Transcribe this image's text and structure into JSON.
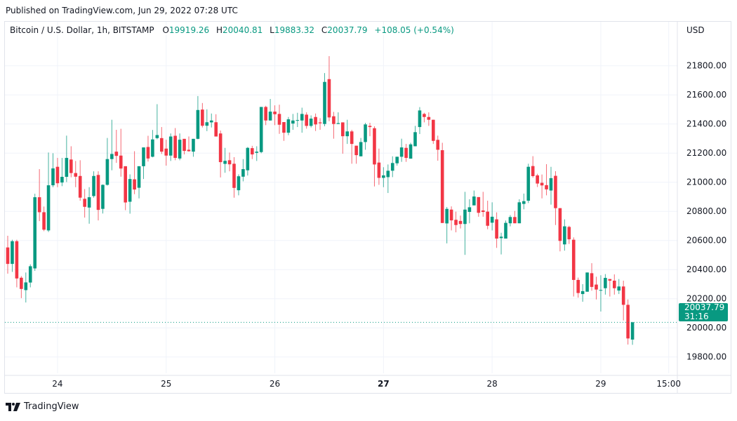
{
  "published": "Published on TradingView.com, Jun 29, 2022 07:28 UTC",
  "legend": {
    "symbol": "Bitcoin / U.S. Dollar, 1h, BITSTAMP",
    "o_label": "O",
    "o": "19919.26",
    "h_label": "H",
    "h": "20040.81",
    "l_label": "L",
    "l": "19883.32",
    "c_label": "C",
    "c": "20037.79",
    "change": "+108.05 (+0.54%)"
  },
  "currency": "USD",
  "last_price": {
    "value": "20037.79",
    "countdown": "31:16"
  },
  "logo": {
    "text": "TradingView",
    "icon": "tradingview-logo-icon"
  },
  "colors": {
    "up": "#089981",
    "down": "#F23645",
    "grid": "#f0f3fa"
  },
  "chart_data": {
    "type": "candlestick",
    "title": "Bitcoin / U.S. Dollar, 1h, BITSTAMP",
    "interval": "1h",
    "start": "2022-06-23 13:00",
    "ylim": [
      19700,
      22050
    ],
    "grid": true,
    "y_ticks": [
      "19800.00",
      "20000.00",
      "20200.00",
      "20400.00",
      "20600.00",
      "20800.00",
      "21000.00",
      "21200.00",
      "21400.00",
      "21600.00",
      "21800.00"
    ],
    "x_ticks": [
      {
        "label": "24",
        "t": "2022-06-24 00:00",
        "bold": false
      },
      {
        "label": "25",
        "t": "2022-06-25 00:00",
        "bold": false
      },
      {
        "label": "26",
        "t": "2022-06-26 00:00",
        "bold": false
      },
      {
        "label": "27",
        "t": "2022-06-27 00:00",
        "bold": true
      },
      {
        "label": "28",
        "t": "2022-06-28 00:00",
        "bold": false
      },
      {
        "label": "29",
        "t": "2022-06-29 00:00",
        "bold": false
      },
      {
        "label": "15:00",
        "t": "2022-06-29 15:00",
        "bold": false
      }
    ],
    "ohlc_fields": [
      "open",
      "high",
      "low",
      "close"
    ],
    "candles": [
      [
        20552,
        20632,
        20372,
        20439
      ],
      [
        20439,
        20605,
        20384,
        20595
      ],
      [
        20595,
        20605,
        20278,
        20339
      ],
      [
        20344,
        20355,
        20204,
        20267
      ],
      [
        20259,
        20380,
        20174,
        20312
      ],
      [
        20311,
        20436,
        20278,
        20423
      ],
      [
        20408,
        20921,
        20391,
        20897
      ],
      [
        20897,
        21090,
        20733,
        20794
      ],
      [
        20794,
        20833,
        20664,
        20674
      ],
      [
        20669,
        21204,
        20658,
        20979
      ],
      [
        20979,
        21199,
        20966,
        21095
      ],
      [
        21106,
        21167,
        20966,
        20993
      ],
      [
        20998,
        21167,
        20973,
        21037
      ],
      [
        21037,
        21320,
        21001,
        21167
      ],
      [
        21156,
        21247,
        21034,
        21063
      ],
      [
        21063,
        21146,
        20966,
        21038
      ],
      [
        21043,
        21151,
        20873,
        20894
      ],
      [
        20886,
        20953,
        20757,
        20831
      ],
      [
        20826,
        20966,
        20715,
        20897
      ],
      [
        20905,
        21075,
        20894,
        21043
      ],
      [
        21050,
        21075,
        20738,
        20810
      ],
      [
        20817,
        20985,
        20785,
        20982
      ],
      [
        20982,
        21304,
        20977,
        21159
      ],
      [
        21159,
        21429,
        21082,
        21194
      ],
      [
        21210,
        21360,
        21133,
        21181
      ],
      [
        21183,
        21367,
        21038,
        21094
      ],
      [
        21110,
        21110,
        20808,
        20861
      ],
      [
        20866,
        21054,
        20784,
        21022
      ],
      [
        21020,
        21213,
        20918,
        20950
      ],
      [
        20962,
        21110,
        20889,
        21110
      ],
      [
        21110,
        21239,
        21022,
        21239
      ],
      [
        21242,
        21319,
        21142,
        21163
      ],
      [
        21175,
        21359,
        21171,
        21294
      ],
      [
        21303,
        21536,
        21295,
        21324
      ],
      [
        21303,
        21379,
        21194,
        21210
      ],
      [
        21231,
        21292,
        21114,
        21183
      ],
      [
        21183,
        21335,
        21146,
        21314
      ],
      [
        21319,
        21372,
        21151,
        21167
      ],
      [
        21163,
        21335,
        21151,
        21292
      ],
      [
        21298,
        21298,
        21191,
        21215
      ],
      [
        21223,
        21314,
        21210,
        21213
      ],
      [
        21210,
        21298,
        21175,
        21298
      ],
      [
        21298,
        21592,
        21295,
        21496
      ],
      [
        21499,
        21544,
        21376,
        21388
      ],
      [
        21388,
        21501,
        21351,
        21412
      ],
      [
        21411,
        21472,
        21376,
        21424
      ],
      [
        21412,
        21467,
        21314,
        21314
      ],
      [
        21335,
        21355,
        21033,
        21138
      ],
      [
        21126,
        21236,
        21065,
        21147
      ],
      [
        21151,
        21204,
        21075,
        21123
      ],
      [
        21127,
        21172,
        20894,
        20961
      ],
      [
        20945,
        21054,
        20910,
        21041
      ],
      [
        21038,
        21159,
        21006,
        21090
      ],
      [
        21082,
        21242,
        21046,
        21236
      ],
      [
        21234,
        21250,
        21159,
        21191
      ],
      [
        21202,
        21247,
        21146,
        21210
      ],
      [
        21207,
        21517,
        21199,
        21517
      ],
      [
        21517,
        21525,
        21392,
        21424
      ],
      [
        21424,
        21572,
        21424,
        21485
      ],
      [
        21485,
        21528,
        21392,
        21467
      ],
      [
        21469,
        21532,
        21332,
        21395
      ],
      [
        21413,
        21413,
        21284,
        21340
      ],
      [
        21340,
        21448,
        21323,
        21432
      ],
      [
        21403,
        21469,
        21360,
        21424
      ],
      [
        21424,
        21477,
        21379,
        21427
      ],
      [
        21424,
        21512,
        21340,
        21469
      ],
      [
        21464,
        21480,
        21368,
        21387
      ],
      [
        21387,
        21459,
        21376,
        21437
      ],
      [
        21448,
        21472,
        21352,
        21397
      ],
      [
        21411,
        21440,
        21360,
        21405
      ],
      [
        21400,
        21750,
        21384,
        21689
      ],
      [
        21708,
        21866,
        21419,
        21445
      ],
      [
        21453,
        21483,
        21299,
        21400
      ],
      [
        21400,
        21480,
        21400,
        21406
      ],
      [
        21411,
        21411,
        21196,
        21316
      ],
      [
        21316,
        21429,
        21263,
        21349
      ],
      [
        21349,
        21360,
        21127,
        21263
      ],
      [
        21251,
        21251,
        21127,
        21186
      ],
      [
        21178,
        21304,
        21178,
        21276
      ],
      [
        21276,
        21408,
        21223,
        21397
      ],
      [
        21387,
        21408,
        21316,
        21379
      ],
      [
        21371,
        21384,
        20971,
        21122
      ],
      [
        21135,
        21231,
        20982,
        21030
      ],
      [
        21030,
        21103,
        20966,
        21047
      ],
      [
        21035,
        21122,
        20926,
        21079
      ],
      [
        21079,
        21178,
        21035,
        21132
      ],
      [
        21130,
        21175,
        21114,
        21175
      ],
      [
        21175,
        21299,
        21140,
        21239
      ],
      [
        21236,
        21263,
        21140,
        21167
      ],
      [
        21162,
        21271,
        21162,
        21260
      ],
      [
        21247,
        21387,
        21247,
        21344
      ],
      [
        21379,
        21516,
        21331,
        21493
      ],
      [
        21469,
        21477,
        21411,
        21448
      ],
      [
        21448,
        21480,
        21387,
        21429
      ],
      [
        21429,
        21429,
        21263,
        21284
      ],
      [
        21291,
        21320,
        21148,
        21223
      ],
      [
        21220,
        21271,
        20720,
        20720
      ],
      [
        20717,
        20830,
        20580,
        20817
      ],
      [
        20812,
        20834,
        20669,
        20738
      ],
      [
        20742,
        20798,
        20656,
        20706
      ],
      [
        20734,
        20771,
        20682,
        20713
      ],
      [
        20713,
        20934,
        20501,
        20812
      ],
      [
        20796,
        20883,
        20718,
        20828
      ],
      [
        20841,
        20943,
        20841,
        20902
      ],
      [
        20898,
        20898,
        20763,
        20790
      ],
      [
        20806,
        20934,
        20763,
        20796
      ],
      [
        20798,
        20873,
        20677,
        20701
      ],
      [
        20722,
        20862,
        20669,
        20763
      ],
      [
        20745,
        20793,
        20549,
        20613
      ],
      [
        20616,
        20653,
        20504,
        20626
      ],
      [
        20613,
        20737,
        20613,
        20721
      ],
      [
        20718,
        20774,
        20697,
        20761
      ],
      [
        20761,
        20803,
        20718,
        20718
      ],
      [
        20718,
        20883,
        20718,
        20862
      ],
      [
        20851,
        20922,
        20814,
        20870
      ],
      [
        20873,
        21127,
        20857,
        21106
      ],
      [
        21111,
        21179,
        21031,
        21042
      ],
      [
        21047,
        21058,
        20967,
        20991
      ],
      [
        20996,
        21053,
        20889,
        20978
      ],
      [
        20980,
        21124,
        20910,
        20951
      ],
      [
        20943,
        21106,
        20846,
        21028
      ],
      [
        21044,
        21076,
        20706,
        20822
      ],
      [
        20822,
        20822,
        20525,
        20597
      ],
      [
        20573,
        20745,
        20530,
        20697
      ],
      [
        20693,
        20701,
        20576,
        20608
      ],
      [
        20605,
        20621,
        20215,
        20329
      ],
      [
        20329,
        20345,
        20207,
        20239
      ],
      [
        20232,
        20300,
        20179,
        20252
      ],
      [
        20248,
        20380,
        20248,
        20380
      ],
      [
        20375,
        20444,
        20255,
        20281
      ],
      [
        20297,
        20351,
        20195,
        20263
      ],
      [
        20256,
        20361,
        20112,
        20260
      ],
      [
        20272,
        20369,
        20228,
        20343
      ],
      [
        20335,
        20335,
        20215,
        20324
      ],
      [
        20324,
        20367,
        20228,
        20272
      ],
      [
        20256,
        20335,
        20232,
        20284
      ],
      [
        20284,
        20324,
        20051,
        20158
      ],
      [
        20158,
        20195,
        19885,
        19927
      ],
      [
        19919.26,
        20040.81,
        19883.32,
        20037.79
      ]
    ],
    "last_price_line": 20037.79
  }
}
